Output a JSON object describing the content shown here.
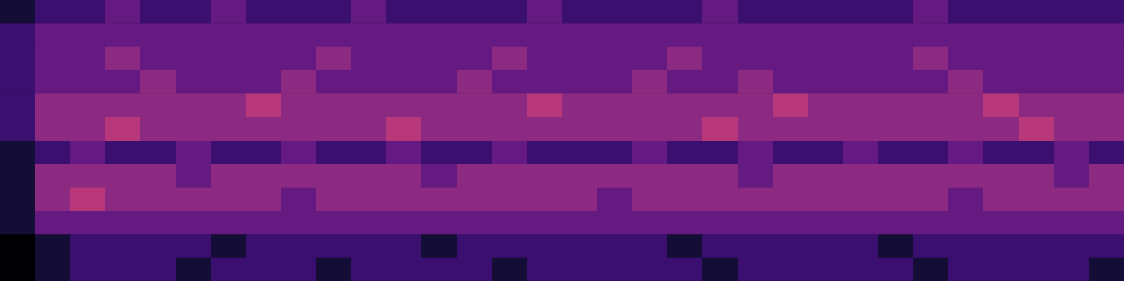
{
  "chart_data": {
    "type": "heatmap",
    "tick_labels": false,
    "zlim": [
      0,
      9
    ],
    "cells": [
      [
        1,
        2,
        2,
        3,
        2,
        2,
        3,
        2,
        2,
        2,
        3,
        2,
        2,
        2,
        2,
        3,
        2,
        2,
        2,
        2,
        3,
        2,
        2,
        2,
        2,
        2,
        3,
        2,
        2,
        2,
        2,
        2
      ],
      [
        2,
        3,
        3,
        3,
        3,
        3,
        3,
        3,
        3,
        3,
        3,
        3,
        3,
        3,
        3,
        3,
        3,
        3,
        3,
        3,
        3,
        3,
        3,
        3,
        3,
        3,
        3,
        3,
        3,
        3,
        3,
        3
      ],
      [
        2,
        3,
        3,
        4,
        3,
        3,
        3,
        3,
        3,
        4,
        3,
        3,
        3,
        3,
        4,
        3,
        3,
        3,
        3,
        4,
        3,
        3,
        3,
        3,
        3,
        3,
        4,
        3,
        3,
        3,
        3,
        3
      ],
      [
        2,
        3,
        3,
        3,
        4,
        3,
        3,
        3,
        4,
        3,
        3,
        3,
        3,
        4,
        3,
        3,
        3,
        3,
        4,
        3,
        3,
        4,
        3,
        3,
        3,
        3,
        3,
        4,
        3,
        3,
        3,
        3
      ],
      [
        2,
        4,
        4,
        4,
        4,
        4,
        4,
        5,
        4,
        4,
        4,
        4,
        4,
        4,
        4,
        5,
        4,
        4,
        4,
        4,
        4,
        4,
        5,
        4,
        4,
        4,
        4,
        4,
        5,
        4,
        4,
        4
      ],
      [
        2,
        4,
        4,
        5,
        4,
        4,
        4,
        4,
        4,
        4,
        4,
        5,
        4,
        4,
        4,
        4,
        4,
        4,
        4,
        4,
        5,
        4,
        4,
        4,
        4,
        4,
        4,
        4,
        4,
        5,
        4,
        4
      ],
      [
        1,
        2,
        3,
        2,
        2,
        3,
        2,
        2,
        3,
        2,
        2,
        3,
        2,
        2,
        3,
        2,
        2,
        2,
        3,
        2,
        2,
        3,
        2,
        2,
        3,
        2,
        2,
        3,
        2,
        2,
        3,
        2
      ],
      [
        1,
        4,
        4,
        4,
        4,
        3,
        4,
        4,
        4,
        4,
        4,
        4,
        3,
        4,
        4,
        4,
        4,
        4,
        4,
        4,
        4,
        3,
        4,
        4,
        4,
        4,
        4,
        4,
        4,
        4,
        3,
        4
      ],
      [
        1,
        4,
        5,
        4,
        4,
        4,
        4,
        4,
        3,
        4,
        4,
        4,
        4,
        4,
        4,
        4,
        4,
        3,
        4,
        4,
        4,
        4,
        4,
        4,
        4,
        4,
        4,
        3,
        4,
        4,
        4,
        4
      ],
      [
        1,
        3,
        3,
        3,
        3,
        3,
        3,
        3,
        3,
        3,
        3,
        3,
        3,
        3,
        3,
        3,
        3,
        3,
        3,
        3,
        3,
        3,
        3,
        3,
        3,
        3,
        3,
        3,
        3,
        3,
        3,
        3
      ],
      [
        0,
        1,
        2,
        2,
        2,
        2,
        1,
        2,
        2,
        2,
        2,
        2,
        1,
        2,
        2,
        2,
        2,
        2,
        2,
        1,
        2,
        2,
        2,
        2,
        2,
        1,
        2,
        2,
        2,
        2,
        2,
        2
      ],
      [
        0,
        1,
        2,
        2,
        2,
        1,
        2,
        2,
        2,
        1,
        2,
        2,
        2,
        2,
        1,
        2,
        2,
        2,
        2,
        2,
        1,
        2,
        2,
        2,
        2,
        2,
        1,
        2,
        2,
        2,
        2,
        1
      ]
    ]
  }
}
